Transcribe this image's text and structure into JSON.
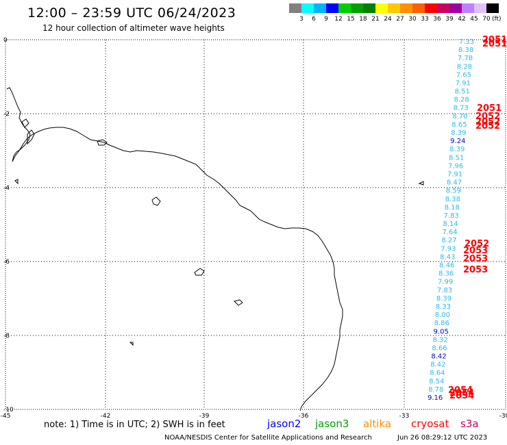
{
  "header": {
    "title": "12:00 – 23:59 UTC 06/24/2023",
    "subtitle": "12 hour collection of altimeter wave heights"
  },
  "scale": {
    "colors": [
      "#808080",
      "#00ffff",
      "#00b4ff",
      "#0000ff",
      "#00d000",
      "#00a000",
      "#008000",
      "#ffff00",
      "#ffc800",
      "#ff9000",
      "#ff6000",
      "#ff0000",
      "#c80060",
      "#a000a0",
      "#c080ff",
      "#e0c0ff",
      "#000000"
    ],
    "labels": [
      "3",
      "6",
      "9",
      "12",
      "15",
      "18",
      "21",
      "24",
      "27",
      "30",
      "33",
      "36",
      "39",
      "42",
      "45",
      "70"
    ],
    "unit": "(ft)"
  },
  "axes": {
    "x_labels": [
      "-45",
      "-42",
      "-39",
      "-36",
      "-33",
      "-30"
    ],
    "y_labels": [
      "0",
      "-2",
      "-4",
      "-6",
      "-8",
      "-10"
    ]
  },
  "readings": [
    {
      "v": "7.33",
      "c": "#2fb8e8"
    },
    {
      "v": "8.38",
      "c": "#2fb8e8"
    },
    {
      "v": "7.78",
      "c": "#2fb8e8"
    },
    {
      "v": "8.28",
      "c": "#2fb8e8"
    },
    {
      "v": "7.65",
      "c": "#2fb8e8"
    },
    {
      "v": "7.91",
      "c": "#2fb8e8"
    },
    {
      "v": "8.51",
      "c": "#2fb8e8"
    },
    {
      "v": "8.28",
      "c": "#2fb8e8"
    },
    {
      "v": "8.73",
      "c": "#2fb8e8"
    },
    {
      "v": "8.70",
      "c": "#2fb8e8"
    },
    {
      "v": "8.65",
      "c": "#2fb8e8"
    },
    {
      "v": "8.39",
      "c": "#2fb8e8"
    },
    {
      "v": "9.24",
      "c": "#0000cc"
    },
    {
      "v": "8.39",
      "c": "#2fb8e8"
    },
    {
      "v": "8.51",
      "c": "#2fb8e8"
    },
    {
      "v": "7.96",
      "c": "#2fb8e8"
    },
    {
      "v": "7.91",
      "c": "#2fb8e8"
    },
    {
      "v": "8.47",
      "c": "#2fb8e8"
    },
    {
      "v": "8.59",
      "c": "#2fb8e8"
    },
    {
      "v": "8.38",
      "c": "#2fb8e8"
    },
    {
      "v": "8.18",
      "c": "#2fb8e8"
    },
    {
      "v": "7.83",
      "c": "#2fb8e8"
    },
    {
      "v": "8.14",
      "c": "#2fb8e8"
    },
    {
      "v": "7.64",
      "c": "#2fb8e8"
    },
    {
      "v": "8.27",
      "c": "#2fb8e8"
    },
    {
      "v": "7.93",
      "c": "#2fb8e8"
    },
    {
      "v": "8.43",
      "c": "#2fb8e8"
    },
    {
      "v": "8.46",
      "c": "#2fb8e8"
    },
    {
      "v": "8.36",
      "c": "#2fb8e8"
    },
    {
      "v": "7.99",
      "c": "#2fb8e8"
    },
    {
      "v": "7.83",
      "c": "#2fb8e8"
    },
    {
      "v": "8.39",
      "c": "#2fb8e8"
    },
    {
      "v": "8.33",
      "c": "#2fb8e8"
    },
    {
      "v": "8.00",
      "c": "#2fb8e8"
    },
    {
      "v": "8.86",
      "c": "#2fb8e8"
    },
    {
      "v": "9.05",
      "c": "#0000cc"
    },
    {
      "v": "8.32",
      "c": "#2fb8e8"
    },
    {
      "v": "8.66",
      "c": "#2fb8e8"
    },
    {
      "v": "8.42",
      "c": "#0000cc"
    },
    {
      "v": "8.42",
      "c": "#2fb8e8"
    },
    {
      "v": "8.64",
      "c": "#2fb8e8"
    },
    {
      "v": "8.54",
      "c": "#2fb8e8"
    },
    {
      "v": "8.78",
      "c": "#2fb8e8"
    },
    {
      "v": "9.16",
      "c": "#0000cc"
    }
  ],
  "times": [
    "2051",
    "2051",
    "2051",
    "2052",
    "2052",
    "2052",
    "2052",
    "2053",
    "2053",
    "2053",
    "2054",
    "2054",
    "2054"
  ],
  "legend": {
    "jason2": {
      "label": "jason2",
      "color": "#0000ff"
    },
    "jason3": {
      "label": "jason3",
      "color": "#00a000"
    },
    "altika": {
      "label": "altika",
      "color": "#ff9000"
    },
    "cryosat": {
      "label": "cryosat",
      "color": "#ff0000"
    },
    "s3a": {
      "label": "s3a",
      "color": "#c80060"
    }
  },
  "note": "note:  1) Time is in UTC;  2) SWH is in feet",
  "footer": {
    "credit": "NOAA/NESDIS Center for Satellite Applications and Research",
    "timestamp": "Jun 26 08:29:12 UTC 2023"
  }
}
